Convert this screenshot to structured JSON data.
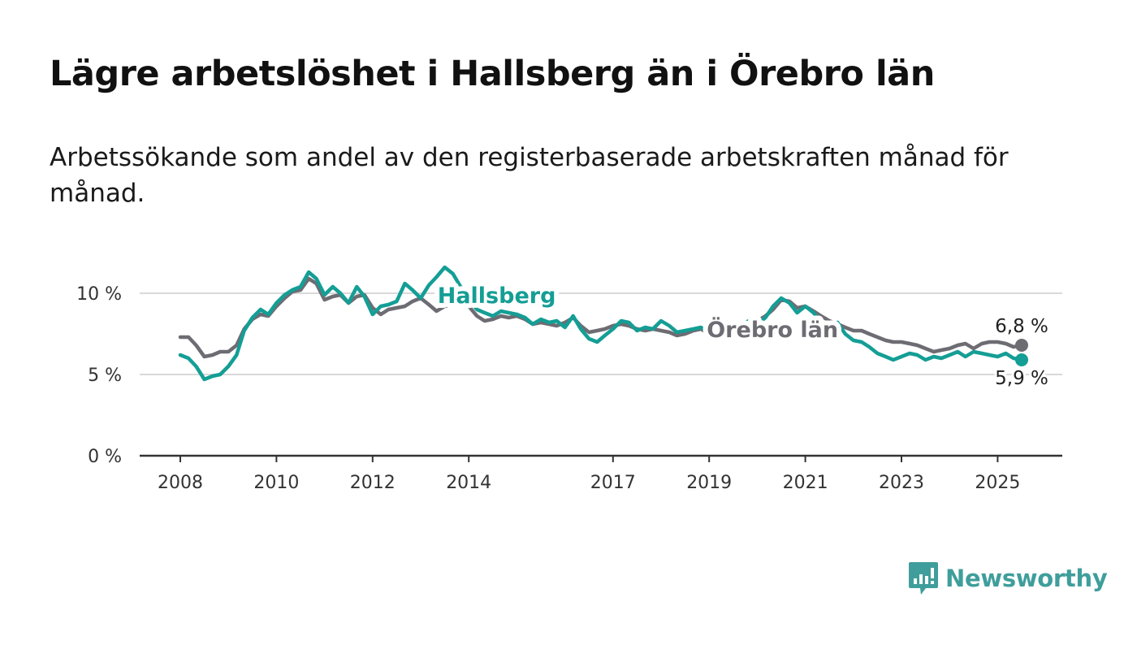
{
  "title": "Lägre arbetslöshet i Hallsberg än i Örebro län",
  "subtitle": "Arbetssökande som andel av den registerbaserade arbetskraften månad för månad.",
  "brand": {
    "name": "Newsworthy",
    "color": "#3f9e9b",
    "icon": "bar-chart-speech-bubble-icon"
  },
  "chart_data": {
    "type": "line",
    "title": "",
    "xlabel": "",
    "ylabel": "",
    "xlim": [
      2008,
      2025.5
    ],
    "ylim": [
      0,
      12
    ],
    "x_ticks": [
      "2008",
      "2010",
      "2012",
      "2014",
      "2017",
      "2019",
      "2021",
      "2023",
      "2025"
    ],
    "y_ticks": [
      {
        "value": 0,
        "label": "0 %"
      },
      {
        "value": 5,
        "label": "5 %"
      },
      {
        "value": 10,
        "label": "10 %"
      }
    ],
    "grid": "horizontal",
    "series": [
      {
        "name": "Örebro län",
        "color": "#6e6c73",
        "end_label": "6,8 %",
        "points": [
          [
            2008,
            7.3
          ],
          [
            2008.17,
            7.3
          ],
          [
            2008.33,
            6.8
          ],
          [
            2008.5,
            6.1
          ],
          [
            2008.67,
            6.2
          ],
          [
            2008.83,
            6.4
          ],
          [
            2009,
            6.4
          ],
          [
            2009.17,
            6.8
          ],
          [
            2009.33,
            7.8
          ],
          [
            2009.5,
            8.4
          ],
          [
            2009.67,
            8.7
          ],
          [
            2009.83,
            8.6
          ],
          [
            2010,
            9.2
          ],
          [
            2010.17,
            9.7
          ],
          [
            2010.33,
            10.1
          ],
          [
            2010.5,
            10.2
          ],
          [
            2010.67,
            10.9
          ],
          [
            2010.83,
            10.6
          ],
          [
            2011,
            9.6
          ],
          [
            2011.17,
            9.8
          ],
          [
            2011.33,
            9.9
          ],
          [
            2011.5,
            9.4
          ],
          [
            2011.67,
            9.8
          ],
          [
            2011.83,
            9.9
          ],
          [
            2012,
            9.1
          ],
          [
            2012.17,
            8.7
          ],
          [
            2012.33,
            9.0
          ],
          [
            2012.5,
            9.1
          ],
          [
            2012.67,
            9.2
          ],
          [
            2012.83,
            9.5
          ],
          [
            2013,
            9.7
          ],
          [
            2013.17,
            9.3
          ],
          [
            2013.33,
            8.9
          ],
          [
            2013.5,
            9.2
          ],
          [
            2013.67,
            9.3
          ],
          [
            2013.83,
            9.5
          ],
          [
            2014,
            9.2
          ],
          [
            2014.17,
            8.6
          ],
          [
            2014.33,
            8.3
          ],
          [
            2014.5,
            8.4
          ],
          [
            2014.67,
            8.6
          ],
          [
            2014.83,
            8.5
          ],
          [
            2015,
            8.6
          ],
          [
            2015.17,
            8.4
          ],
          [
            2015.33,
            8.1
          ],
          [
            2015.5,
            8.2
          ],
          [
            2015.67,
            8.1
          ],
          [
            2015.83,
            8.0
          ],
          [
            2016,
            8.2
          ],
          [
            2016.17,
            8.5
          ],
          [
            2016.33,
            8.0
          ],
          [
            2016.5,
            7.6
          ],
          [
            2016.67,
            7.7
          ],
          [
            2016.83,
            7.8
          ],
          [
            2017,
            8.0
          ],
          [
            2017.17,
            8.1
          ],
          [
            2017.33,
            8.0
          ],
          [
            2017.5,
            7.8
          ],
          [
            2017.67,
            7.7
          ],
          [
            2017.83,
            7.8
          ],
          [
            2018,
            7.7
          ],
          [
            2018.17,
            7.6
          ],
          [
            2018.33,
            7.4
          ],
          [
            2018.5,
            7.5
          ],
          [
            2018.67,
            7.7
          ],
          [
            2018.83,
            7.8
          ],
          [
            2019,
            7.5
          ],
          [
            2019.17,
            7.6
          ],
          [
            2019.33,
            7.8
          ],
          [
            2019.5,
            7.9
          ],
          [
            2019.67,
            8.0
          ],
          [
            2019.83,
            8.2
          ],
          [
            2020,
            8.3
          ],
          [
            2020.17,
            8.6
          ],
          [
            2020.33,
            9.0
          ],
          [
            2020.5,
            9.6
          ],
          [
            2020.67,
            9.5
          ],
          [
            2020.83,
            9.1
          ],
          [
            2021,
            9.2
          ],
          [
            2021.17,
            8.9
          ],
          [
            2021.33,
            8.6
          ],
          [
            2021.5,
            8.3
          ],
          [
            2021.67,
            8.1
          ],
          [
            2021.83,
            7.9
          ],
          [
            2022,
            7.7
          ],
          [
            2022.17,
            7.7
          ],
          [
            2022.33,
            7.5
          ],
          [
            2022.5,
            7.3
          ],
          [
            2022.67,
            7.1
          ],
          [
            2022.83,
            7.0
          ],
          [
            2023,
            7.0
          ],
          [
            2023.17,
            6.9
          ],
          [
            2023.33,
            6.8
          ],
          [
            2023.5,
            6.6
          ],
          [
            2023.67,
            6.4
          ],
          [
            2023.83,
            6.5
          ],
          [
            2024,
            6.6
          ],
          [
            2024.17,
            6.8
          ],
          [
            2024.33,
            6.9
          ],
          [
            2024.5,
            6.6
          ],
          [
            2024.67,
            6.9
          ],
          [
            2024.83,
            7.0
          ],
          [
            2025,
            7.0
          ],
          [
            2025.17,
            6.9
          ],
          [
            2025.33,
            6.7
          ],
          [
            2025.5,
            6.8
          ]
        ]
      },
      {
        "name": "Hallsberg",
        "color": "#149e95",
        "end_label": "5,9 %",
        "points": [
          [
            2008,
            6.2
          ],
          [
            2008.17,
            6.0
          ],
          [
            2008.33,
            5.5
          ],
          [
            2008.5,
            4.7
          ],
          [
            2008.67,
            4.9
          ],
          [
            2008.83,
            5.0
          ],
          [
            2009,
            5.5
          ],
          [
            2009.17,
            6.2
          ],
          [
            2009.33,
            7.7
          ],
          [
            2009.5,
            8.5
          ],
          [
            2009.67,
            9.0
          ],
          [
            2009.83,
            8.7
          ],
          [
            2010,
            9.4
          ],
          [
            2010.17,
            9.9
          ],
          [
            2010.33,
            10.2
          ],
          [
            2010.5,
            10.4
          ],
          [
            2010.67,
            11.3
          ],
          [
            2010.83,
            10.9
          ],
          [
            2011,
            9.9
          ],
          [
            2011.17,
            10.4
          ],
          [
            2011.33,
            10.0
          ],
          [
            2011.5,
            9.4
          ],
          [
            2011.67,
            10.4
          ],
          [
            2011.83,
            9.8
          ],
          [
            2012,
            8.7
          ],
          [
            2012.17,
            9.2
          ],
          [
            2012.33,
            9.3
          ],
          [
            2012.5,
            9.5
          ],
          [
            2012.67,
            10.6
          ],
          [
            2012.83,
            10.2
          ],
          [
            2013,
            9.7
          ],
          [
            2013.17,
            10.5
          ],
          [
            2013.33,
            11.0
          ],
          [
            2013.5,
            11.6
          ],
          [
            2013.67,
            11.2
          ],
          [
            2013.83,
            10.4
          ],
          [
            2014,
            9.6
          ],
          [
            2014.17,
            9.0
          ],
          [
            2014.33,
            8.8
          ],
          [
            2014.5,
            8.6
          ],
          [
            2014.67,
            8.9
          ],
          [
            2014.83,
            8.8
          ],
          [
            2015,
            8.7
          ],
          [
            2015.17,
            8.5
          ],
          [
            2015.33,
            8.1
          ],
          [
            2015.5,
            8.4
          ],
          [
            2015.67,
            8.2
          ],
          [
            2015.83,
            8.3
          ],
          [
            2016,
            7.9
          ],
          [
            2016.17,
            8.6
          ],
          [
            2016.33,
            7.8
          ],
          [
            2016.5,
            7.2
          ],
          [
            2016.67,
            7.0
          ],
          [
            2016.83,
            7.4
          ],
          [
            2017,
            7.8
          ],
          [
            2017.17,
            8.3
          ],
          [
            2017.33,
            8.2
          ],
          [
            2017.5,
            7.7
          ],
          [
            2017.67,
            7.9
          ],
          [
            2017.83,
            7.8
          ],
          [
            2018,
            8.3
          ],
          [
            2018.17,
            8.0
          ],
          [
            2018.33,
            7.6
          ],
          [
            2018.5,
            7.7
          ],
          [
            2018.67,
            7.8
          ],
          [
            2018.83,
            7.9
          ],
          [
            2019,
            7.6
          ],
          [
            2019.17,
            7.7
          ],
          [
            2019.33,
            7.9
          ],
          [
            2019.5,
            8.0
          ],
          [
            2019.67,
            8.1
          ],
          [
            2019.83,
            8.3
          ],
          [
            2020,
            8.1
          ],
          [
            2020.17,
            8.5
          ],
          [
            2020.33,
            9.2
          ],
          [
            2020.5,
            9.7
          ],
          [
            2020.67,
            9.4
          ],
          [
            2020.83,
            8.8
          ],
          [
            2021,
            9.2
          ],
          [
            2021.17,
            8.8
          ],
          [
            2021.33,
            8.2
          ],
          [
            2021.5,
            7.9
          ],
          [
            2021.67,
            8.2
          ],
          [
            2021.83,
            7.5
          ],
          [
            2022,
            7.1
          ],
          [
            2022.17,
            7.0
          ],
          [
            2022.33,
            6.7
          ],
          [
            2022.5,
            6.3
          ],
          [
            2022.67,
            6.1
          ],
          [
            2022.83,
            5.9
          ],
          [
            2023,
            6.1
          ],
          [
            2023.17,
            6.3
          ],
          [
            2023.33,
            6.2
          ],
          [
            2023.5,
            5.9
          ],
          [
            2023.67,
            6.1
          ],
          [
            2023.83,
            6.0
          ],
          [
            2024,
            6.2
          ],
          [
            2024.17,
            6.4
          ],
          [
            2024.33,
            6.1
          ],
          [
            2024.5,
            6.4
          ],
          [
            2024.67,
            6.3
          ],
          [
            2024.83,
            6.2
          ],
          [
            2025,
            6.1
          ],
          [
            2025.17,
            6.3
          ],
          [
            2025.33,
            6.0
          ],
          [
            2025.5,
            5.9
          ]
        ]
      }
    ],
    "inline_labels": [
      {
        "series": "Hallsberg",
        "text": "Hallsberg",
        "anchor_x": 2013.35,
        "anchor_y": 9.4
      },
      {
        "series": "Örebro län",
        "text": "Örebro län",
        "anchor_x": 2018.95,
        "anchor_y": 7.3
      }
    ]
  }
}
